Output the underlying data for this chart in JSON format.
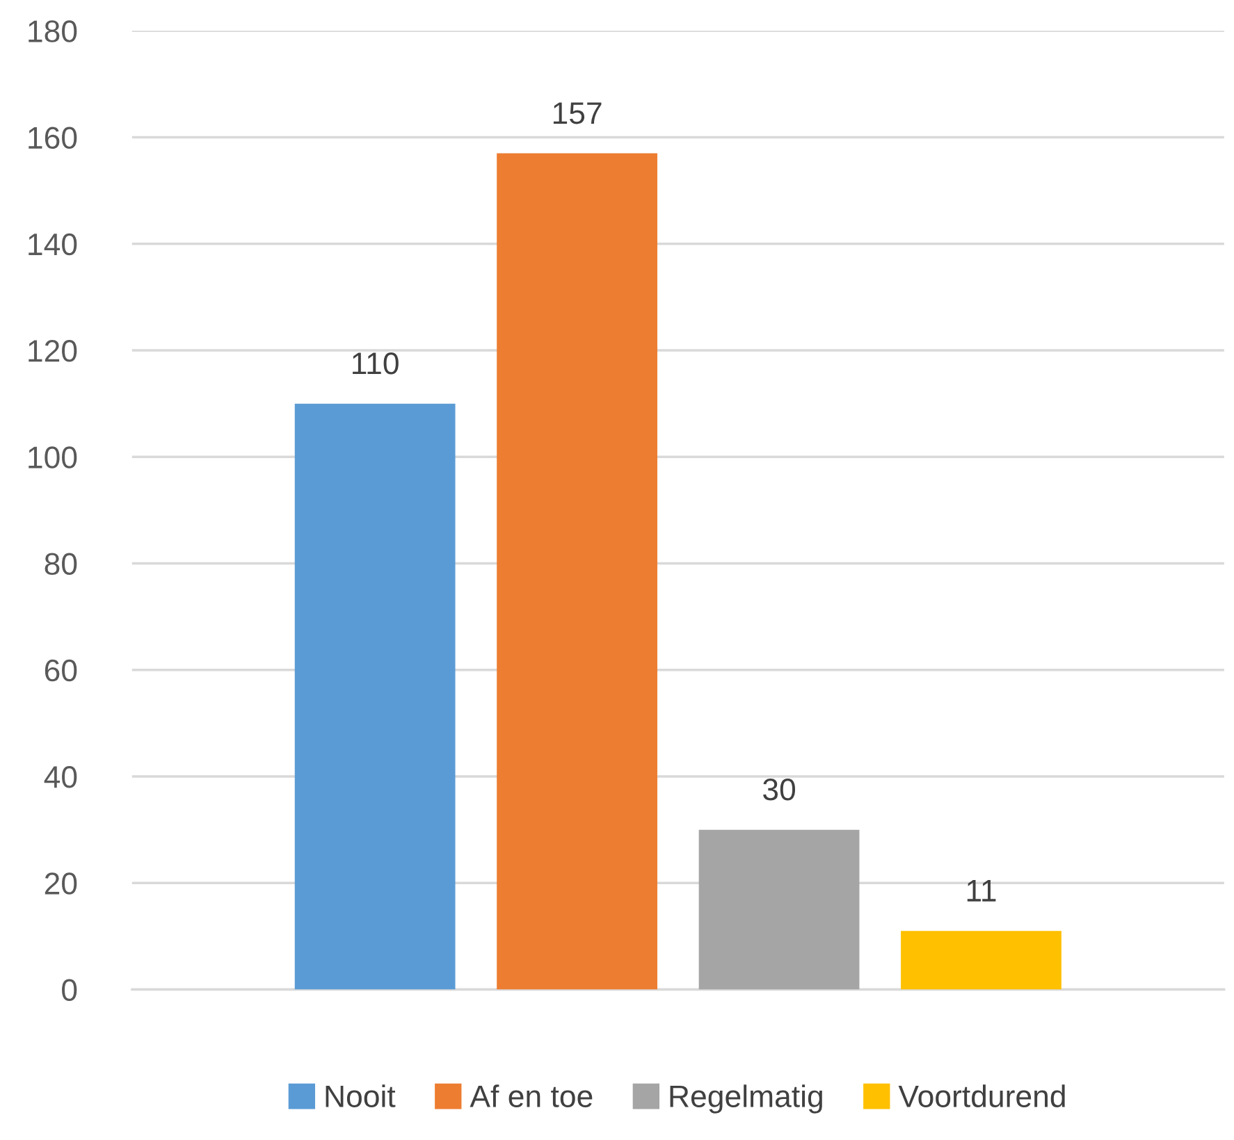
{
  "chart_data": {
    "type": "bar",
    "categories": [
      null
    ],
    "series": [
      {
        "name": "Nooit",
        "color": "#5b9bd5",
        "values": [
          110
        ]
      },
      {
        "name": "Af en toe",
        "color": "#ed7d31",
        "values": [
          157
        ]
      },
      {
        "name": "Regelmatig",
        "color": "#a5a5a5",
        "values": [
          30
        ]
      },
      {
        "name": "Voortdurend",
        "color": "#ffc000",
        "values": [
          11
        ]
      }
    ],
    "ylim": [
      0,
      180
    ],
    "yticks": [
      0,
      20,
      40,
      60,
      80,
      100,
      120,
      140,
      160,
      180
    ],
    "grid": "y",
    "legend": "bottom",
    "data_labels": true
  }
}
